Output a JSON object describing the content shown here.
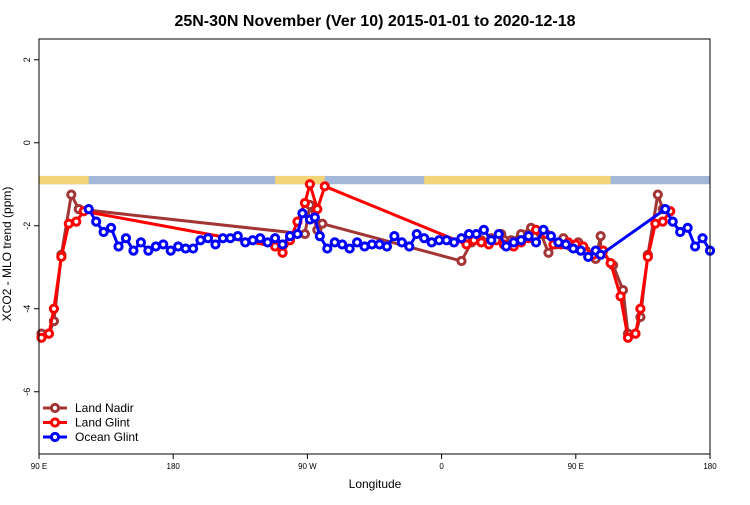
{
  "chart_data": {
    "type": "line",
    "title": "25N-30N November (Ver 10)   2015-01-01 to 2020-12-18",
    "xlabel": "Longitude",
    "ylabel": "XCO2 - MLO trend (ppm)",
    "xlim": [
      -90,
      180
    ],
    "ylim": [
      -7.5,
      2.5
    ],
    "yticks": [
      2,
      0,
      -2,
      -4,
      -6
    ],
    "xticks": [
      {
        "value": -90,
        "label": "90 E"
      },
      {
        "value": -36,
        "label": "180"
      },
      {
        "value": 18,
        "label": "90 W"
      },
      {
        "value": 72,
        "label": "0"
      },
      {
        "value": 126,
        "label": "90 E"
      },
      {
        "value": 180,
        "label": "180"
      }
    ],
    "legend_position": "bottom-left",
    "land_ocean_strip": {
      "y_top": -0.8,
      "y_bottom": -1.0,
      "ocean_color": "#a3b7d9",
      "land_color": "#f2d479",
      "land_segments": [
        [
          -90,
          -70
        ],
        [
          5,
          25
        ],
        [
          65,
          140
        ]
      ]
    },
    "series": [
      {
        "name": "Land Nadir",
        "color": "#a33535",
        "points": [
          [
            -89,
            -4.6
          ],
          [
            -86,
            -4.6
          ],
          [
            -84,
            -4.3
          ],
          [
            -81,
            -2.7
          ],
          [
            -77,
            -1.25
          ],
          [
            -74,
            -1.6
          ],
          [
            17,
            -2.2
          ],
          [
            19,
            -1.5
          ],
          [
            22,
            -2.1
          ],
          [
            24,
            -1.95
          ],
          [
            80,
            -2.85
          ],
          [
            84,
            -2.4
          ],
          [
            88,
            -2.35
          ],
          [
            92,
            -2.3
          ],
          [
            96,
            -2.2
          ],
          [
            100,
            -2.35
          ],
          [
            104,
            -2.2
          ],
          [
            108,
            -2.05
          ],
          [
            112,
            -2.2
          ],
          [
            115,
            -2.65
          ],
          [
            118,
            -2.45
          ],
          [
            121,
            -2.3
          ],
          [
            124,
            -2.5
          ],
          [
            127,
            -2.4
          ],
          [
            130,
            -2.6
          ],
          [
            134,
            -2.8
          ],
          [
            136,
            -2.25
          ],
          [
            136,
            -2.6
          ],
          [
            141,
            -2.95
          ],
          [
            145,
            -3.55
          ],
          [
            147,
            -4.6
          ],
          [
            150,
            -4.6
          ],
          [
            152,
            -4.2
          ],
          [
            155,
            -2.7
          ],
          [
            159,
            -1.25
          ],
          [
            161,
            -1.6
          ]
        ]
      },
      {
        "name": "Land Glint",
        "color": "#ff0000",
        "points": [
          [
            -89,
            -4.7
          ],
          [
            -86,
            -4.6
          ],
          [
            -84,
            -4.0
          ],
          [
            -81,
            -2.75
          ],
          [
            -78,
            -1.95
          ],
          [
            -75,
            -1.9
          ],
          [
            -72,
            -1.65
          ],
          [
            5,
            -2.5
          ],
          [
            8,
            -2.65
          ],
          [
            11,
            -2.35
          ],
          [
            14,
            -1.9
          ],
          [
            17,
            -1.45
          ],
          [
            19,
            -1.0
          ],
          [
            22,
            -1.6
          ],
          [
            25,
            -1.05
          ],
          [
            82,
            -2.45
          ],
          [
            85,
            -2.35
          ],
          [
            88,
            -2.4
          ],
          [
            91,
            -2.45
          ],
          [
            94,
            -2.35
          ],
          [
            97,
            -2.45
          ],
          [
            101,
            -2.5
          ],
          [
            104,
            -2.4
          ],
          [
            107,
            -2.3
          ],
          [
            110,
            -2.1
          ],
          [
            114,
            -2.2
          ],
          [
            117,
            -2.45
          ],
          [
            120,
            -2.45
          ],
          [
            123,
            -2.4
          ],
          [
            126,
            -2.45
          ],
          [
            129,
            -2.5
          ],
          [
            133,
            -2.7
          ],
          [
            137,
            -2.6
          ],
          [
            140,
            -2.9
          ],
          [
            144,
            -3.7
          ],
          [
            147,
            -4.7
          ],
          [
            150,
            -4.6
          ],
          [
            152,
            -4.0
          ],
          [
            155,
            -2.75
          ],
          [
            158,
            -1.95
          ],
          [
            161,
            -1.9
          ],
          [
            164,
            -1.65
          ]
        ]
      },
      {
        "name": "Ocean Glint",
        "color": "#0000ff",
        "points": [
          [
            -70,
            -1.6
          ],
          [
            -67,
            -1.9
          ],
          [
            -64,
            -2.15
          ],
          [
            -61,
            -2.05
          ],
          [
            -58,
            -2.5
          ],
          [
            -55,
            -2.3
          ],
          [
            -52,
            -2.6
          ],
          [
            -49,
            -2.4
          ],
          [
            -46,
            -2.6
          ],
          [
            -43,
            -2.5
          ],
          [
            -40,
            -2.45
          ],
          [
            -37,
            -2.6
          ],
          [
            -34,
            -2.5
          ],
          [
            -31,
            -2.55
          ],
          [
            -28,
            -2.55
          ],
          [
            -25,
            -2.35
          ],
          [
            -22,
            -2.3
          ],
          [
            -19,
            -2.45
          ],
          [
            -16,
            -2.3
          ],
          [
            -13,
            -2.3
          ],
          [
            -10,
            -2.25
          ],
          [
            -7,
            -2.4
          ],
          [
            -4,
            -2.35
          ],
          [
            -1,
            -2.3
          ],
          [
            2,
            -2.4
          ],
          [
            5,
            -2.3
          ],
          [
            8,
            -2.45
          ],
          [
            11,
            -2.25
          ],
          [
            14,
            -2.2
          ],
          [
            16,
            -1.7
          ],
          [
            19,
            -1.85
          ],
          [
            21,
            -1.8
          ],
          [
            23,
            -2.25
          ],
          [
            26,
            -2.55
          ],
          [
            29,
            -2.4
          ],
          [
            32,
            -2.45
          ],
          [
            35,
            -2.55
          ],
          [
            38,
            -2.4
          ],
          [
            41,
            -2.5
          ],
          [
            44,
            -2.45
          ],
          [
            47,
            -2.45
          ],
          [
            50,
            -2.5
          ],
          [
            53,
            -2.25
          ],
          [
            56,
            -2.4
          ],
          [
            59,
            -2.5
          ],
          [
            62,
            -2.2
          ],
          [
            65,
            -2.3
          ],
          [
            68,
            -2.4
          ],
          [
            71,
            -2.35
          ],
          [
            74,
            -2.35
          ],
          [
            77,
            -2.4
          ],
          [
            80,
            -2.3
          ],
          [
            83,
            -2.2
          ],
          [
            86,
            -2.2
          ],
          [
            89,
            -2.1
          ],
          [
            92,
            -2.35
          ],
          [
            95,
            -2.2
          ],
          [
            98,
            -2.5
          ],
          [
            101,
            -2.4
          ],
          [
            104,
            -2.35
          ],
          [
            107,
            -2.25
          ],
          [
            110,
            -2.4
          ],
          [
            113,
            -2.1
          ],
          [
            116,
            -2.25
          ],
          [
            119,
            -2.4
          ],
          [
            122,
            -2.45
          ],
          [
            125,
            -2.55
          ],
          [
            128,
            -2.6
          ],
          [
            131,
            -2.75
          ],
          [
            134,
            -2.6
          ],
          [
            136,
            -2.7
          ],
          [
            162,
            -1.6
          ],
          [
            165,
            -1.9
          ],
          [
            168,
            -2.15
          ],
          [
            171,
            -2.05
          ],
          [
            174,
            -2.5
          ],
          [
            177,
            -2.3
          ],
          [
            180,
            -2.6
          ]
        ]
      }
    ]
  }
}
